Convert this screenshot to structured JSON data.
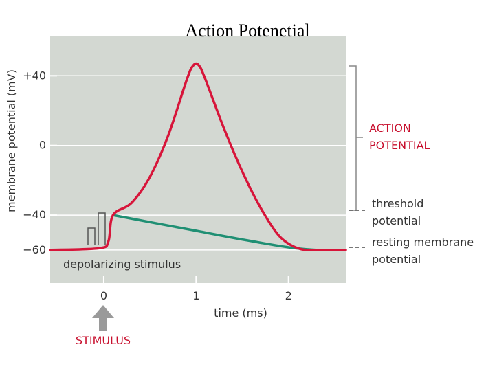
{
  "chart_data": {
    "type": "line",
    "title": "Action Potenetial",
    "xlabel": "time (ms)",
    "ylabel": "membrane potential (mV)",
    "xlim": [
      -0.58,
      2.62
    ],
    "ylim": [
      -79,
      63
    ],
    "x_ticks": [
      {
        "value": 0,
        "label": "0"
      },
      {
        "value": 1,
        "label": "1"
      },
      {
        "value": 2,
        "label": "2"
      }
    ],
    "y_ticks": [
      {
        "value": 40,
        "label": "+40"
      },
      {
        "value": 0,
        "label": "0"
      },
      {
        "value": -40,
        "label": "−40"
      },
      {
        "value": -60,
        "label": "−60"
      }
    ],
    "grid": true,
    "series": [
      {
        "color": "#d7153a",
        "x": [
          -0.58,
          -0.05,
          0.05,
          0.1,
          0.3,
          0.5,
          0.7,
          0.9,
          0.97,
          1.03,
          1.1,
          1.3,
          1.5,
          1.7,
          1.9,
          2.1,
          2.3,
          2.62
        ],
        "y": [
          -60,
          -59,
          -55,
          -40,
          -33,
          -18,
          6,
          38,
          46,
          46,
          38,
          10,
          -15,
          -36,
          -52,
          -59,
          -60,
          -60
        ]
      },
      {
        "color": "#1f8f73",
        "x": [
          0.1,
          0.5,
          1.0,
          1.5,
          2.0,
          2.3
        ],
        "y": [
          -40,
          -44,
          -49,
          -54,
          -58.5,
          -60
        ]
      }
    ],
    "threshold_level": -40,
    "resting_level": -60,
    "annotations": {
      "action_potential": [
        "ACTION",
        "POTENTIAL"
      ],
      "threshold": [
        "threshold",
        "potential"
      ],
      "resting": [
        "resting membrane",
        "potential"
      ],
      "depolarizing": "depolarizing stimulus",
      "stimulus": "STIMULUS"
    },
    "colors": {
      "background_panel": "#d3d8d2",
      "grid": "#ffffff",
      "action_line": "#d7153a",
      "decay_line": "#1f8f73",
      "accent_text": "#c8102e",
      "arrow": "#9a9a9a"
    }
  }
}
